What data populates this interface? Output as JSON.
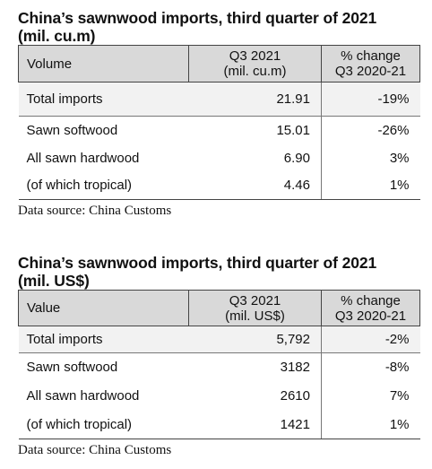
{
  "volume_table": {
    "title": "China’s sawnwood imports, third quarter of 2021\n(mil. cu.m)",
    "headers": {
      "label": "Volume",
      "col1": "Q3 2021\n(mil. cu.m)",
      "col2": "% change\nQ3 2020-21"
    },
    "rows": [
      {
        "label": "Total imports",
        "value": "21.91",
        "change": "-19%"
      },
      {
        "label": "Sawn softwood",
        "value": "15.01",
        "change": "-26%"
      },
      {
        "label": "All sawn hardwood",
        "value": "6.90",
        "change": "3%"
      },
      {
        "label": "(of which tropical)",
        "value": "4.46",
        "change": "1%"
      }
    ],
    "source": "Data source: China Customs"
  },
  "value_table": {
    "title": "China’s sawnwood imports, third quarter of 2021\n(mil. US$)",
    "headers": {
      "label": "Value",
      "col1": "Q3 2021\n(mil. US$)",
      "col2": "% change\nQ3 2020-21"
    },
    "rows": [
      {
        "label": "Total imports",
        "value": "5,792",
        "change": "-2%"
      },
      {
        "label": "Sawn softwood",
        "value": "3182",
        "change": "-8%"
      },
      {
        "label": "All sawn hardwood",
        "value": "2610",
        "change": "7%"
      },
      {
        "label": "(of which tropical)",
        "value": "1421",
        "change": "1%"
      }
    ],
    "source": "Data source: China Customs"
  }
}
